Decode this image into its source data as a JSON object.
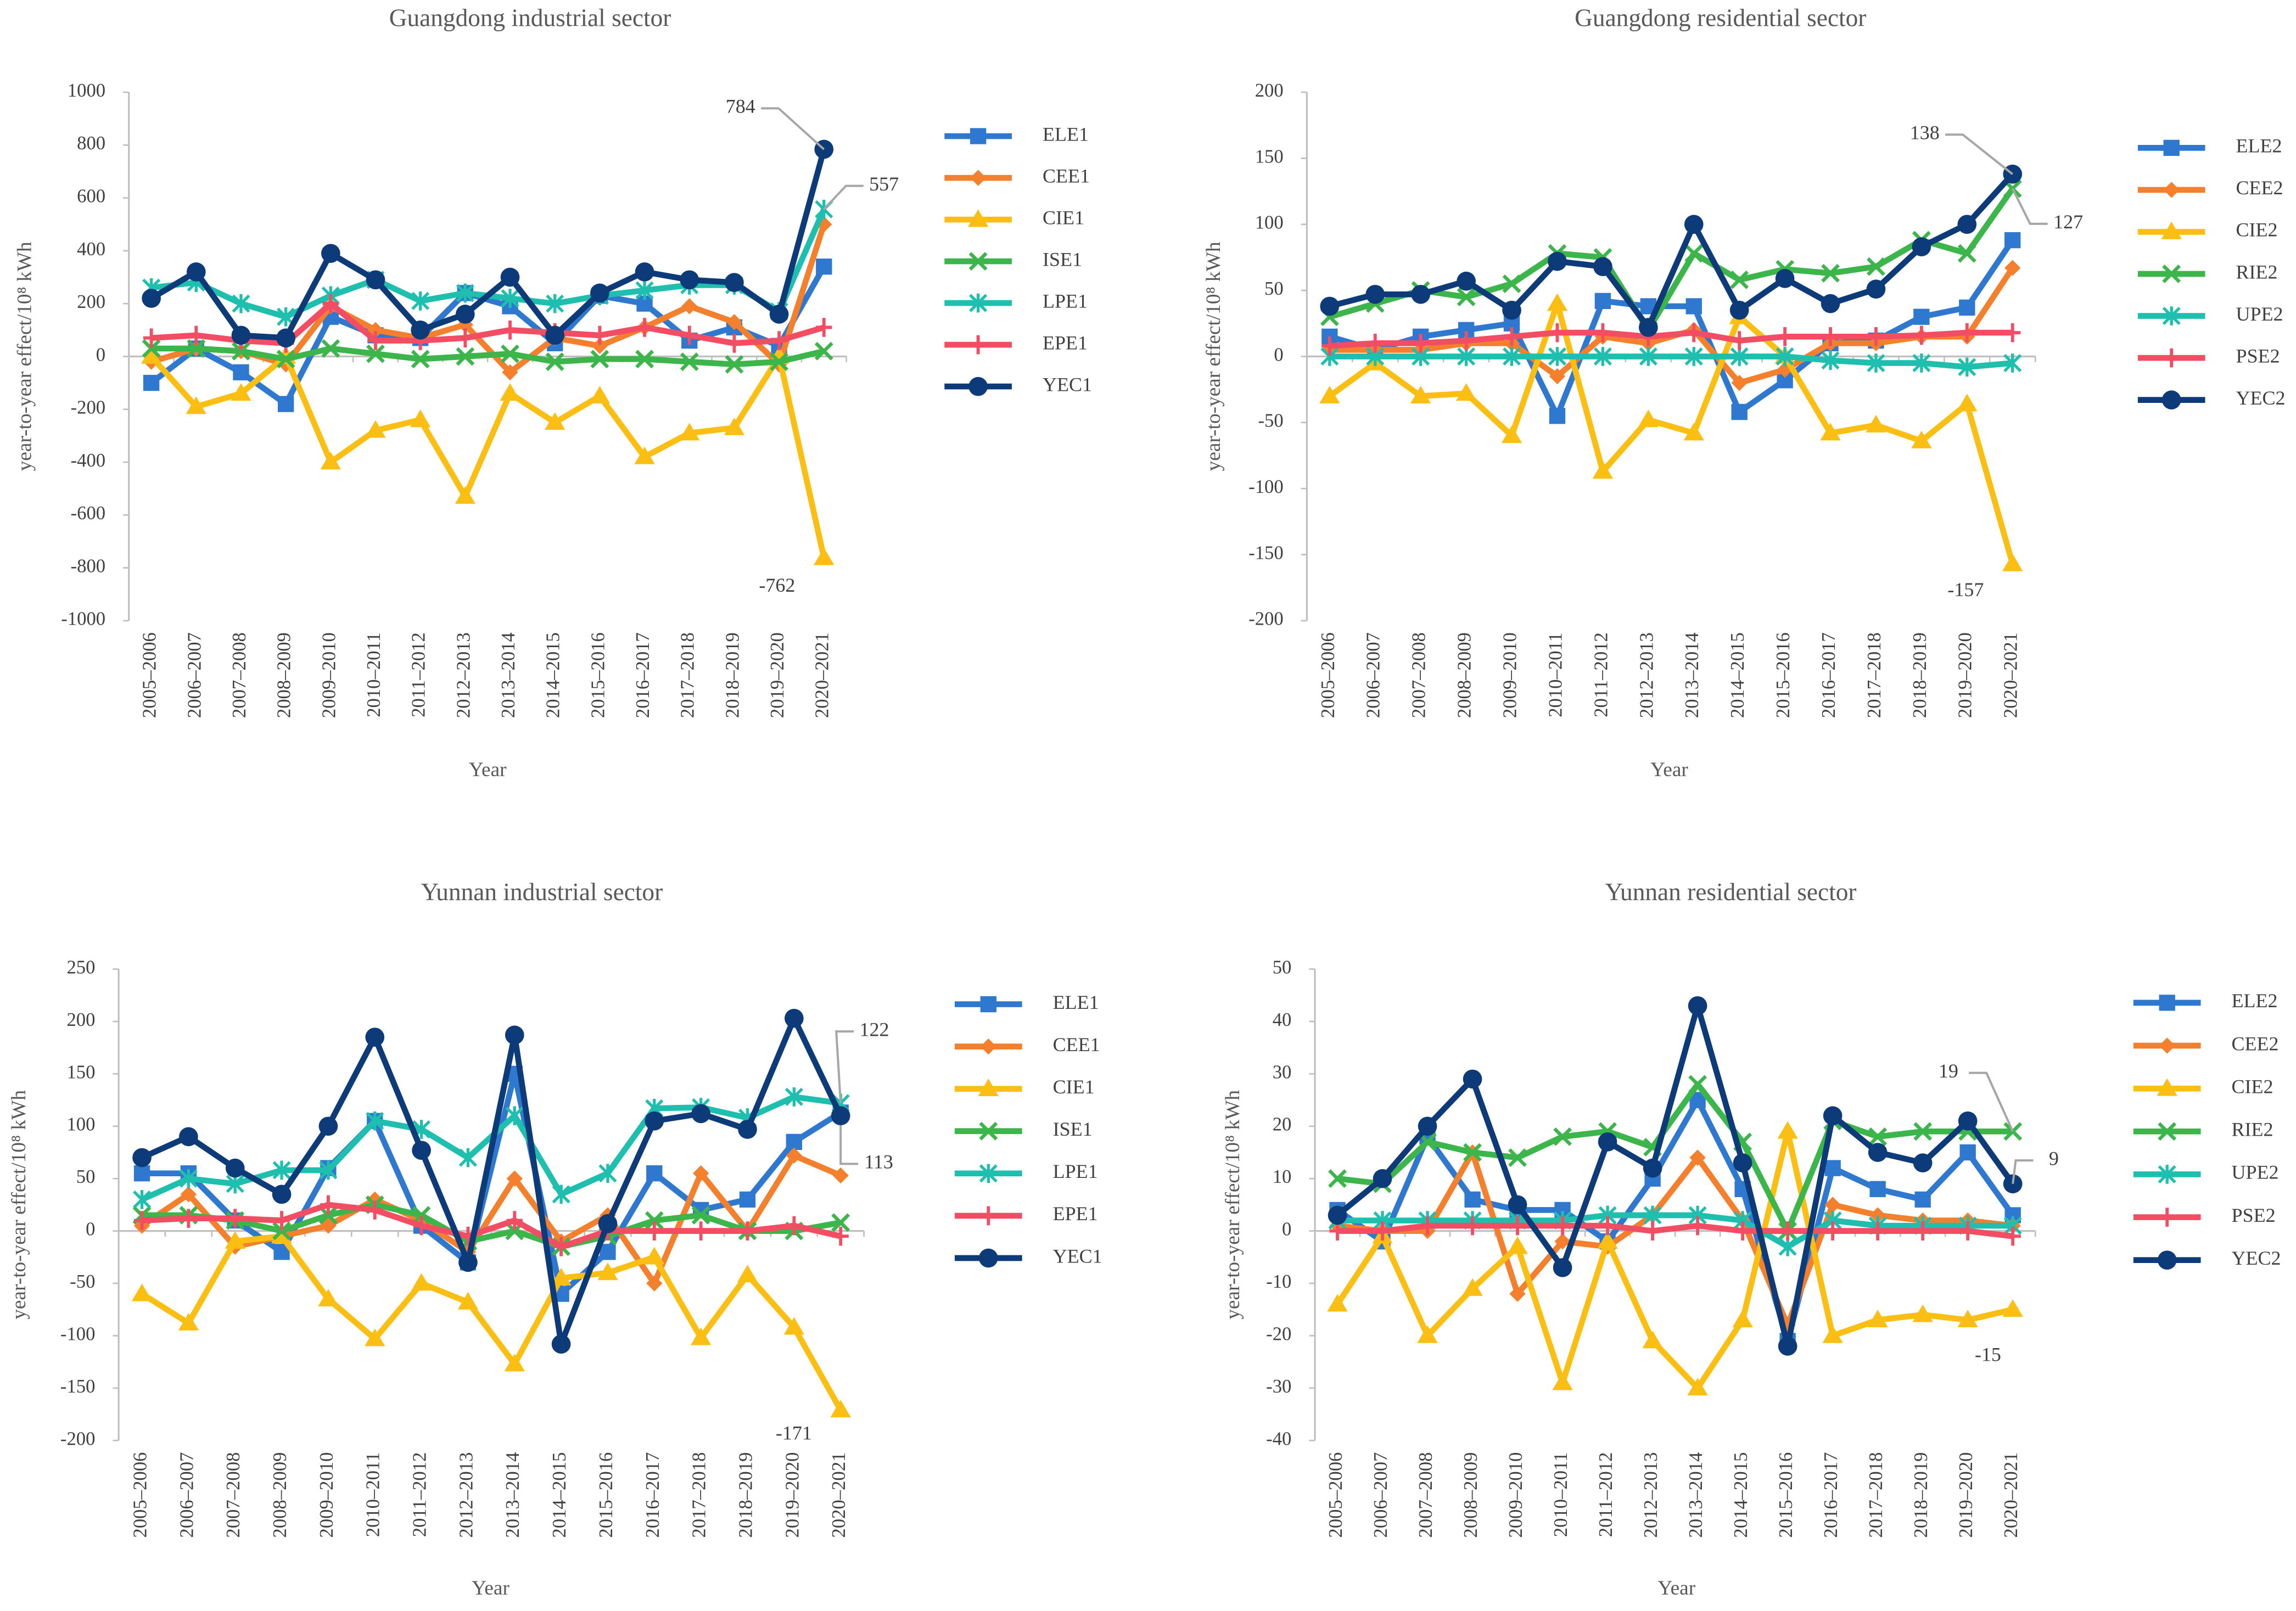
{
  "chart_data": [
    {
      "type": "line",
      "title": "Guangdong industrial sector",
      "x_label": "Year",
      "y_label": "year-to-year effect/10⁸ kWh",
      "categories": [
        "2005–2006",
        "2006–2007",
        "2007–2008",
        "2008–2009",
        "2009–2010",
        "2010–2011",
        "2011–2012",
        "2012–2013",
        "2013–2014",
        "2014–2015",
        "2015–2016",
        "2016–2017",
        "2017–2018",
        "2018–2019",
        "2019–2020",
        "2020–2021"
      ],
      "ylim": [
        -1000,
        1000
      ],
      "yticks": [
        -1000,
        -800,
        -600,
        -400,
        -200,
        0,
        200,
        400,
        600,
        800,
        1000
      ],
      "grid": false,
      "legend": "right",
      "series": [
        {
          "name": "ELE1",
          "color": "#2f78cf",
          "marker": "square",
          "values": [
            -100,
            30,
            -60,
            -180,
            150,
            80,
            70,
            240,
            190,
            50,
            230,
            200,
            60,
            110,
            40,
            340
          ]
        },
        {
          "name": "CEE1",
          "color": "#f47f2c",
          "marker": "diamond",
          "values": [
            -20,
            30,
            20,
            -30,
            190,
            100,
            70,
            120,
            -60,
            70,
            40,
            110,
            190,
            130,
            -30,
            500
          ]
        },
        {
          "name": "CIE1",
          "color": "#fbbf14",
          "marker": "triangle",
          "values": [
            0,
            -190,
            -140,
            0,
            -400,
            -280,
            -240,
            -530,
            -140,
            -250,
            -150,
            -380,
            -290,
            -270,
            0,
            -762
          ],
          "value_labels": [
            null,
            null,
            null,
            null,
            null,
            null,
            null,
            null,
            null,
            null,
            null,
            null,
            null,
            null,
            null,
            "-762"
          ]
        },
        {
          "name": "ISE1",
          "color": "#3cb54a",
          "marker": "x",
          "values": [
            30,
            30,
            20,
            -10,
            30,
            10,
            -10,
            0,
            10,
            -20,
            -10,
            -10,
            -20,
            -30,
            -20,
            20
          ]
        },
        {
          "name": "LPE1",
          "color": "#1ebfae",
          "marker": "asterisk",
          "values": [
            260,
            280,
            200,
            150,
            230,
            290,
            210,
            240,
            220,
            200,
            230,
            250,
            270,
            270,
            170,
            557
          ],
          "value_labels": [
            null,
            null,
            null,
            null,
            null,
            null,
            null,
            null,
            null,
            null,
            null,
            null,
            null,
            null,
            null,
            "557"
          ]
        },
        {
          "name": "EPE1",
          "color": "#f24d63",
          "marker": "plus",
          "values": [
            70,
            80,
            60,
            50,
            200,
            60,
            60,
            70,
            100,
            90,
            80,
            110,
            80,
            50,
            60,
            110
          ]
        },
        {
          "name": "YEC1",
          "color": "#0d3a78",
          "marker": "circle",
          "values": [
            220,
            320,
            80,
            70,
            390,
            290,
            100,
            160,
            300,
            80,
            240,
            320,
            290,
            280,
            160,
            784
          ],
          "value_labels": [
            null,
            null,
            null,
            null,
            null,
            null,
            null,
            null,
            null,
            null,
            null,
            null,
            null,
            null,
            null,
            "784"
          ]
        }
      ]
    },
    {
      "type": "line",
      "title": "Guangdong residential sector",
      "x_label": "Year",
      "y_label": "year-to-year effect/10⁸ kWh",
      "categories": [
        "2005–2006",
        "2006–2007",
        "2007–2008",
        "2008–2009",
        "2009–2010",
        "2010–2011",
        "2011–2012",
        "2012–2013",
        "2013–2014",
        "2014–2015",
        "2015–2016",
        "2016–2017",
        "2017–2018",
        "2018–2019",
        "2019–2020",
        "2020–2021"
      ],
      "ylim": [
        -200,
        200
      ],
      "yticks": [
        -200,
        -150,
        -100,
        -50,
        0,
        50,
        100,
        150,
        200
      ],
      "grid": false,
      "legend": "right",
      "series": [
        {
          "name": "ELE2",
          "color": "#2f78cf",
          "marker": "square",
          "values": [
            15,
            5,
            15,
            20,
            25,
            -45,
            42,
            38,
            38,
            -42,
            -18,
            10,
            12,
            30,
            37,
            88
          ]
        },
        {
          "name": "CEE2",
          "color": "#f47f2c",
          "marker": "diamond",
          "values": [
            5,
            5,
            5,
            10,
            10,
            -15,
            15,
            10,
            20,
            -20,
            -10,
            10,
            10,
            15,
            15,
            67
          ]
        },
        {
          "name": "CIE2",
          "color": "#fbbf14",
          "marker": "triangle",
          "values": [
            -30,
            -5,
            -30,
            -28,
            -60,
            40,
            -87,
            -48,
            -58,
            30,
            0,
            -58,
            -52,
            -64,
            -36,
            -157
          ],
          "value_labels": [
            null,
            null,
            null,
            null,
            null,
            null,
            null,
            null,
            null,
            null,
            null,
            null,
            null,
            null,
            null,
            "-157"
          ]
        },
        {
          "name": "RIE2",
          "color": "#3cb54a",
          "marker": "x",
          "values": [
            30,
            40,
            50,
            45,
            55,
            78,
            75,
            20,
            78,
            58,
            66,
            63,
            68,
            88,
            78,
            127
          ],
          "value_labels": [
            null,
            null,
            null,
            null,
            null,
            null,
            null,
            null,
            null,
            null,
            null,
            null,
            null,
            null,
            null,
            "127"
          ]
        },
        {
          "name": "UPE2",
          "color": "#1ebfae",
          "marker": "asterisk",
          "values": [
            0,
            0,
            0,
            0,
            0,
            0,
            0,
            0,
            0,
            0,
            0,
            -3,
            -5,
            -5,
            -8,
            -5
          ]
        },
        {
          "name": "PSE2",
          "color": "#f24d63",
          "marker": "plus",
          "values": [
            8,
            10,
            10,
            12,
            15,
            18,
            18,
            15,
            18,
            12,
            15,
            15,
            15,
            16,
            18,
            18
          ]
        },
        {
          "name": "YEC2",
          "color": "#0d3a78",
          "marker": "circle",
          "values": [
            38,
            47,
            47,
            57,
            35,
            72,
            68,
            22,
            100,
            35,
            59,
            40,
            51,
            83,
            100,
            138
          ],
          "value_labels": [
            null,
            null,
            null,
            null,
            null,
            null,
            null,
            null,
            null,
            null,
            null,
            null,
            null,
            null,
            null,
            "138"
          ]
        }
      ]
    },
    {
      "type": "line",
      "title": "Yunnan industrial sector",
      "x_label": "Year",
      "y_label": "year-to-year effect/10⁸ kWh",
      "categories": [
        "2005–2006",
        "2006–2007",
        "2007–2008",
        "2008–2009",
        "2009–2010",
        "2010–2011",
        "2011–2012",
        "2012–2013",
        "2013–2014",
        "2014–2015",
        "2015–2016",
        "2016–2017",
        "2017–2018",
        "2018–2019",
        "2019–2020",
        "2020–2021"
      ],
      "ylim": [
        -200,
        250
      ],
      "yticks": [
        -200,
        -150,
        -100,
        -50,
        0,
        50,
        100,
        150,
        200,
        250
      ],
      "grid": false,
      "legend": "right",
      "series": [
        {
          "name": "ELE1",
          "color": "#2f78cf",
          "marker": "square",
          "values": [
            55,
            55,
            10,
            -20,
            60,
            105,
            5,
            -30,
            150,
            -60,
            -20,
            55,
            20,
            30,
            85,
            113
          ],
          "value_labels": [
            null,
            null,
            null,
            null,
            null,
            null,
            null,
            null,
            null,
            null,
            null,
            null,
            null,
            null,
            null,
            "113"
          ]
        },
        {
          "name": "CEE1",
          "color": "#f47f2c",
          "marker": "diamond",
          "values": [
            5,
            35,
            -15,
            -5,
            5,
            30,
            10,
            -20,
            50,
            -10,
            15,
            -50,
            55,
            0,
            72,
            53
          ]
        },
        {
          "name": "CIE1",
          "color": "#fbbf14",
          "marker": "triangle",
          "values": [
            -60,
            -88,
            -10,
            -5,
            -65,
            -103,
            -50,
            -68,
            -127,
            -45,
            -40,
            -25,
            -102,
            -42,
            -92,
            -171
          ],
          "value_labels": [
            null,
            null,
            null,
            null,
            null,
            null,
            null,
            null,
            null,
            null,
            null,
            null,
            null,
            null,
            null,
            "-171"
          ]
        },
        {
          "name": "ISE1",
          "color": "#3cb54a",
          "marker": "x",
          "values": [
            15,
            15,
            10,
            0,
            15,
            25,
            15,
            -10,
            0,
            -15,
            -5,
            10,
            15,
            0,
            0,
            8
          ]
        },
        {
          "name": "LPE1",
          "color": "#1ebfae",
          "marker": "asterisk",
          "values": [
            30,
            50,
            45,
            58,
            58,
            105,
            97,
            70,
            110,
            35,
            55,
            117,
            118,
            108,
            128,
            122
          ],
          "value_labels": [
            null,
            null,
            null,
            null,
            null,
            null,
            null,
            null,
            null,
            null,
            null,
            null,
            null,
            null,
            null,
            "122"
          ]
        },
        {
          "name": "EPE1",
          "color": "#f24d63",
          "marker": "plus",
          "values": [
            10,
            12,
            12,
            10,
            25,
            20,
            5,
            -5,
            10,
            -15,
            0,
            0,
            0,
            0,
            5,
            -5
          ]
        },
        {
          "name": "YEC1",
          "color": "#0d3a78",
          "marker": "circle",
          "values": [
            70,
            90,
            60,
            35,
            100,
            185,
            77,
            -30,
            187,
            -108,
            7,
            105,
            112,
            97,
            203,
            110
          ]
        }
      ]
    },
    {
      "type": "line",
      "title": "Yunnan residential sector",
      "x_label": "Year",
      "y_label": "year-to-year effect/10⁸ kWh",
      "categories": [
        "2005–2006",
        "2006–2007",
        "2007–2008",
        "2008–2009",
        "2009–2010",
        "2010–2011",
        "2011–2012",
        "2012–2013",
        "2013–2014",
        "2014–2015",
        "2015–2016",
        "2016–2017",
        "2017–2018",
        "2018–2019",
        "2019–2020",
        "2020–2021"
      ],
      "ylim": [
        -40,
        50
      ],
      "yticks": [
        -40,
        -30,
        -20,
        -10,
        0,
        10,
        20,
        30,
        40,
        50
      ],
      "grid": false,
      "legend": "right",
      "series": [
        {
          "name": "ELE2",
          "color": "#2f78cf",
          "marker": "square",
          "values": [
            4,
            -2,
            18,
            6,
            4,
            4,
            -2,
            10,
            25,
            8,
            -21,
            12,
            8,
            6,
            15,
            3
          ]
        },
        {
          "name": "CEE2",
          "color": "#f47f2c",
          "marker": "diamond",
          "values": [
            1,
            0,
            0,
            15,
            -12,
            -2,
            -3,
            3,
            14,
            2,
            -18,
            5,
            3,
            2,
            2,
            1
          ]
        },
        {
          "name": "CIE2",
          "color": "#fbbf14",
          "marker": "triangle",
          "values": [
            -14,
            -1,
            -20,
            -11,
            -3,
            -29,
            -2,
            -21,
            -30,
            -17,
            19,
            -20,
            -17,
            -16,
            -17,
            -15
          ],
          "value_labels": [
            null,
            null,
            null,
            null,
            null,
            null,
            null,
            null,
            null,
            null,
            null,
            null,
            null,
            null,
            null,
            "-15"
          ]
        },
        {
          "name": "RIE2",
          "color": "#3cb54a",
          "marker": "x",
          "values": [
            10,
            9,
            17,
            15,
            14,
            18,
            19,
            16,
            28,
            17,
            0,
            21,
            18,
            19,
            19,
            19
          ],
          "value_labels": [
            null,
            null,
            null,
            null,
            null,
            null,
            null,
            null,
            null,
            null,
            null,
            null,
            null,
            null,
            null,
            "19"
          ]
        },
        {
          "name": "UPE2",
          "color": "#1ebfae",
          "marker": "asterisk",
          "values": [
            2,
            2,
            2,
            2,
            2,
            2,
            3,
            3,
            3,
            2,
            -3,
            2,
            1,
            1,
            1,
            1
          ]
        },
        {
          "name": "PSE2",
          "color": "#f24d63",
          "marker": "plus",
          "values": [
            0,
            0,
            1,
            1,
            1,
            1,
            1,
            0,
            1,
            0,
            0,
            0,
            0,
            0,
            0,
            -1
          ]
        },
        {
          "name": "YEC2",
          "color": "#0d3a78",
          "marker": "circle",
          "values": [
            3,
            10,
            20,
            29,
            5,
            -7,
            17,
            12,
            43,
            13,
            -22,
            22,
            15,
            13,
            21,
            9
          ],
          "value_labels": [
            null,
            null,
            null,
            null,
            null,
            null,
            null,
            null,
            null,
            null,
            null,
            null,
            null,
            null,
            null,
            "9"
          ]
        }
      ]
    }
  ]
}
